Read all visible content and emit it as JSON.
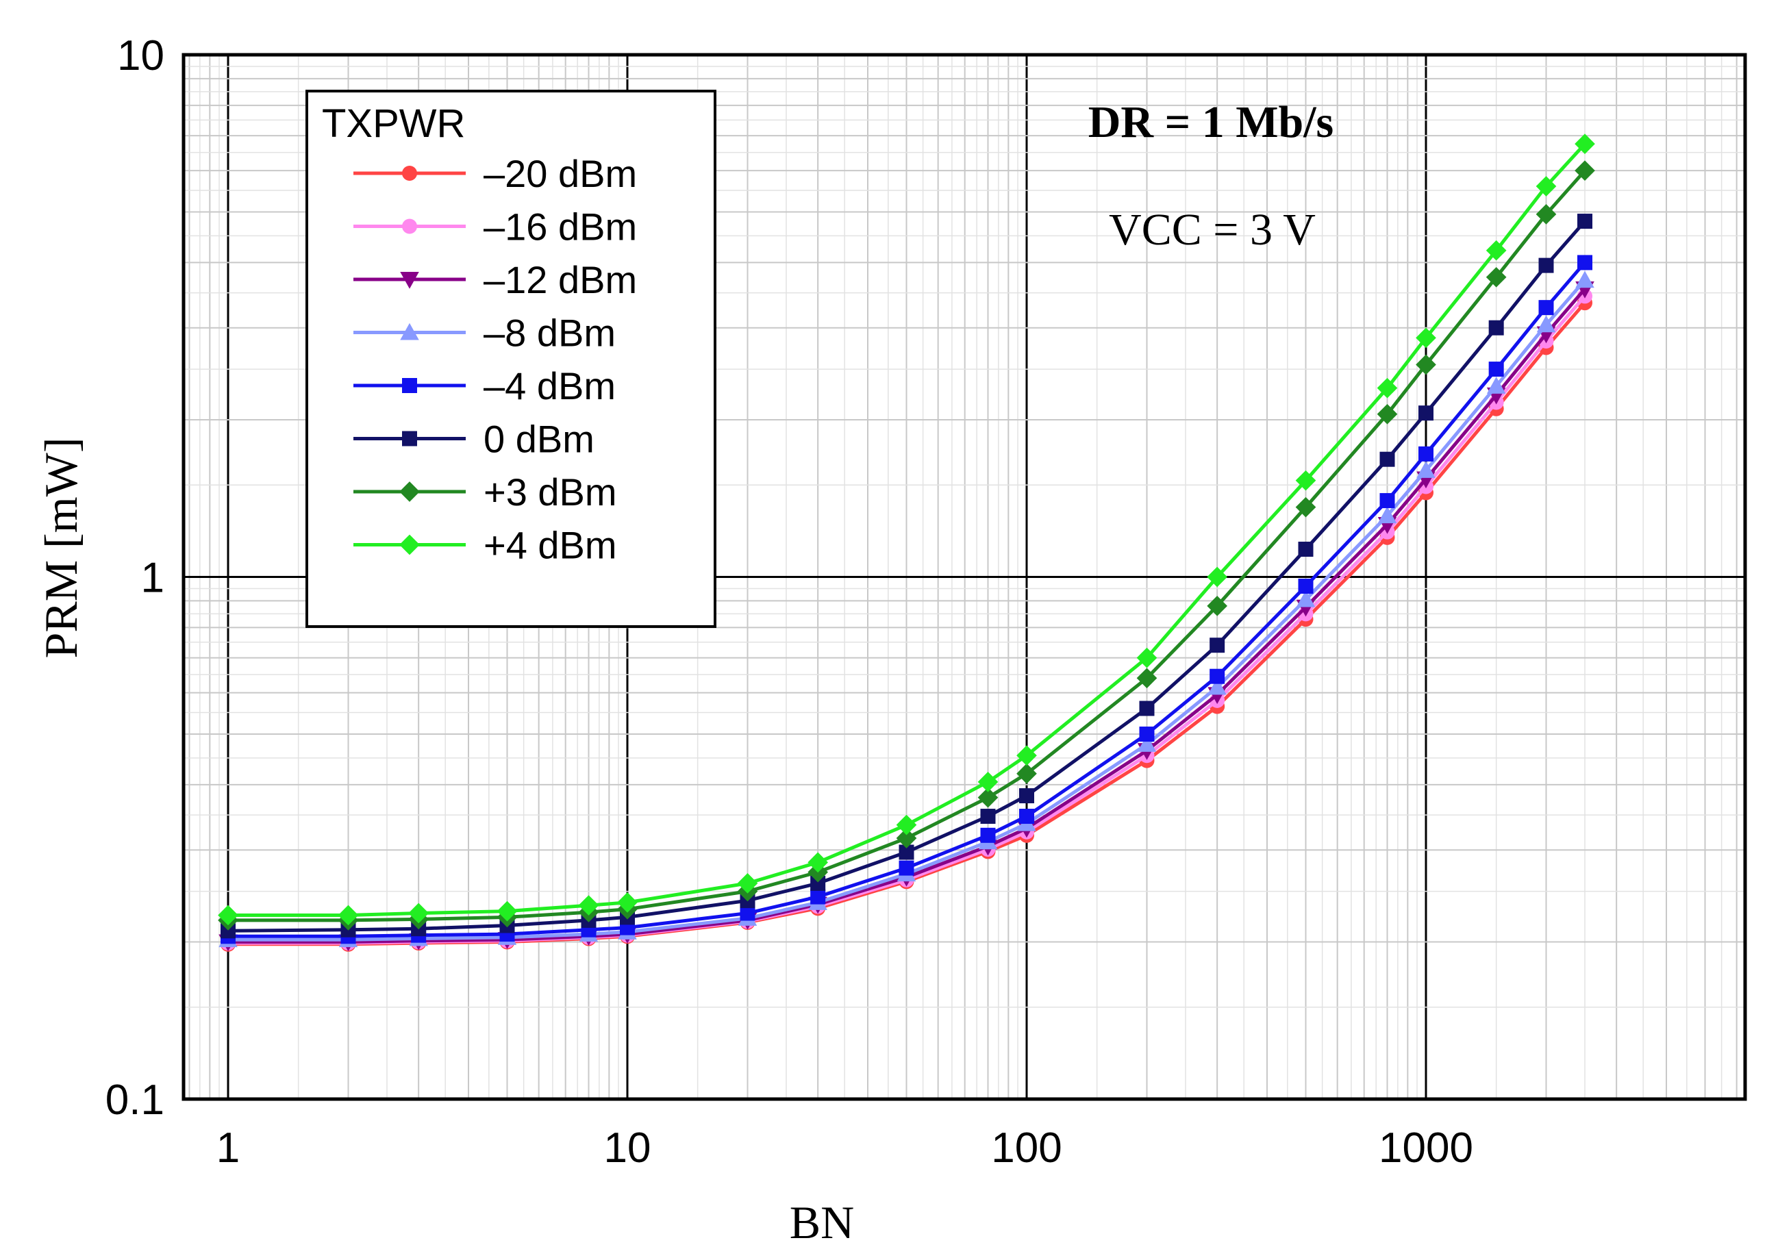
{
  "chart_data": {
    "type": "line",
    "xlabel": "BN",
    "ylabel": "PRM [mW]",
    "xscale": "log",
    "yscale": "log",
    "xlim": [
      0.75,
      7000
    ],
    "ylim": [
      0.1,
      10
    ],
    "x_ticks": [
      1,
      10,
      100,
      1000
    ],
    "x_tick_labels": [
      "1",
      "10",
      "100",
      "1000"
    ],
    "y_ticks": [
      0.1,
      1,
      10
    ],
    "y_tick_labels": [
      "0.1",
      "1",
      "10"
    ],
    "grid": true,
    "legend_title": "TXPWR",
    "legend_position": "top-left",
    "annotations": [
      "DR = 1 Mb/s",
      "VCC = 3 V"
    ],
    "x": [
      1,
      2,
      3,
      5,
      8,
      10,
      20,
      30,
      50,
      80,
      100,
      200,
      300,
      500,
      800,
      1000,
      1500,
      2000,
      2500
    ],
    "series": [
      {
        "name": "–20 dBm",
        "color": "#ff4444",
        "marker": "circle",
        "values": [
          0.198,
          0.198,
          0.199,
          0.2,
          0.203,
          0.205,
          0.218,
          0.232,
          0.261,
          0.298,
          0.32,
          0.445,
          0.565,
          0.83,
          1.19,
          1.45,
          2.1,
          2.75,
          3.35
        ]
      },
      {
        "name": "–16 dBm",
        "color": "#ff88ee",
        "marker": "circle",
        "values": [
          0.199,
          0.199,
          0.2,
          0.201,
          0.204,
          0.206,
          0.219,
          0.234,
          0.263,
          0.301,
          0.325,
          0.455,
          0.58,
          0.85,
          1.22,
          1.49,
          2.16,
          2.83,
          3.45
        ]
      },
      {
        "name": "–12 dBm",
        "color": "#880088",
        "marker": "triangle-down",
        "values": [
          0.2,
          0.2,
          0.201,
          0.202,
          0.205,
          0.207,
          0.22,
          0.236,
          0.266,
          0.305,
          0.33,
          0.465,
          0.595,
          0.875,
          1.26,
          1.54,
          2.23,
          2.92,
          3.56
        ]
      },
      {
        "name": "–8 dBm",
        "color": "#8899ff",
        "marker": "triangle-up",
        "values": [
          0.202,
          0.202,
          0.203,
          0.204,
          0.207,
          0.209,
          0.222,
          0.238,
          0.27,
          0.311,
          0.337,
          0.478,
          0.615,
          0.905,
          1.31,
          1.6,
          2.32,
          3.04,
          3.7
        ]
      },
      {
        "name": "–4 dBm",
        "color": "#1111ee",
        "marker": "square",
        "values": [
          0.205,
          0.205,
          0.206,
          0.207,
          0.211,
          0.213,
          0.227,
          0.244,
          0.277,
          0.32,
          0.348,
          0.5,
          0.645,
          0.96,
          1.4,
          1.72,
          2.5,
          3.28,
          4.0
        ]
      },
      {
        "name": "0 dBm",
        "color": "#111166",
        "marker": "square",
        "values": [
          0.21,
          0.211,
          0.212,
          0.215,
          0.22,
          0.223,
          0.24,
          0.259,
          0.297,
          0.348,
          0.381,
          0.56,
          0.74,
          1.13,
          1.68,
          2.06,
          3.0,
          3.95,
          4.8
        ]
      },
      {
        "name": "+3 dBm",
        "color": "#228822",
        "marker": "diamond",
        "values": [
          0.22,
          0.22,
          0.221,
          0.223,
          0.228,
          0.231,
          0.25,
          0.272,
          0.316,
          0.378,
          0.42,
          0.64,
          0.88,
          1.36,
          2.05,
          2.55,
          3.75,
          4.95,
          6.0
        ]
      },
      {
        "name": "+4 dBm",
        "color": "#22ee22",
        "marker": "diamond",
        "values": [
          0.225,
          0.225,
          0.227,
          0.229,
          0.235,
          0.238,
          0.259,
          0.284,
          0.335,
          0.405,
          0.455,
          0.7,
          1.0,
          1.53,
          2.3,
          2.87,
          4.22,
          5.6,
          6.75
        ]
      }
    ]
  }
}
